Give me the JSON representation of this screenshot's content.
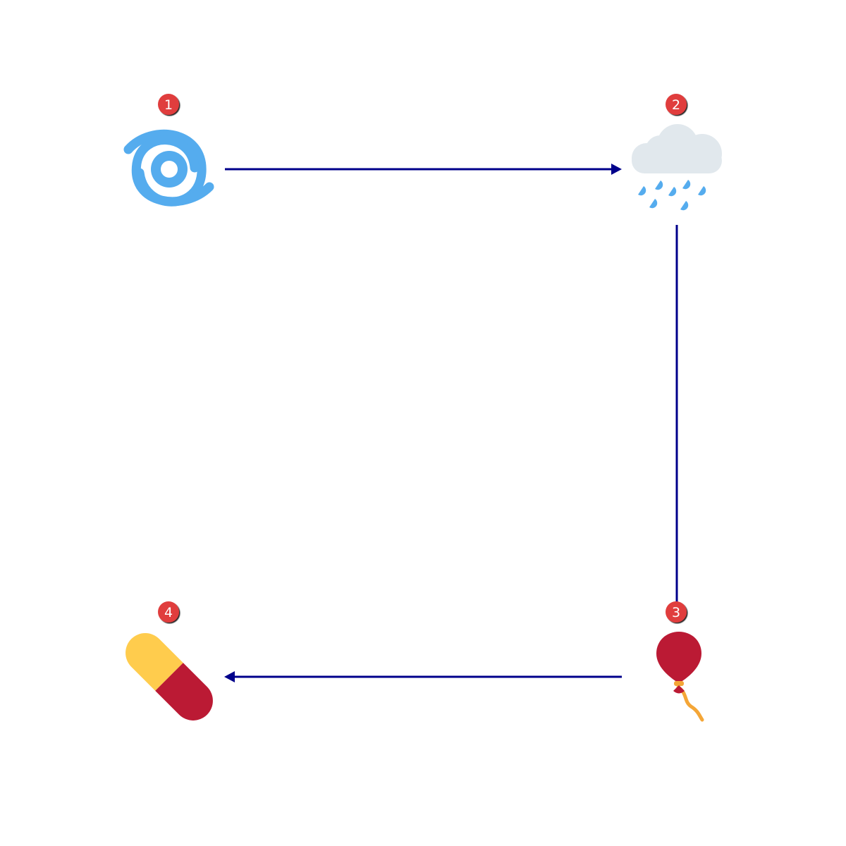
{
  "diagram": {
    "edge_color": "#00008B",
    "badge_color": "#E03C3C",
    "nodes": [
      {
        "step": "1",
        "icon": "cyclone-icon"
      },
      {
        "step": "2",
        "icon": "rain-cloud-icon"
      },
      {
        "step": "3",
        "icon": "balloon-icon"
      },
      {
        "step": "4",
        "icon": "pill-icon"
      }
    ],
    "edges": [
      {
        "from": "1",
        "to": "2"
      },
      {
        "from": "2",
        "to": "3"
      },
      {
        "from": "3",
        "to": "4"
      }
    ]
  }
}
